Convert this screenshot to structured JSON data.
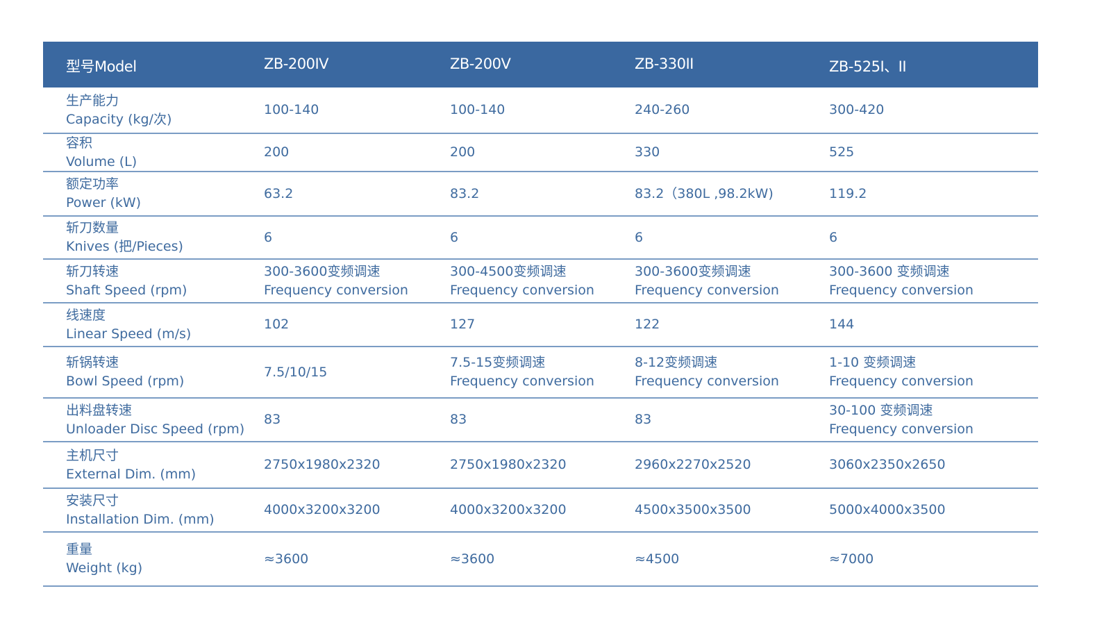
{
  "header": [
    "型号Model",
    "ZB-200IV",
    "ZB-200V",
    "ZB-330II",
    "ZB-525I、II"
  ],
  "rows": [
    {
      "label_cn": "生产能力",
      "label_en": "Capacity (kg/次)",
      "values": [
        [
          "100-140"
        ],
        [
          "100-140"
        ],
        [
          "240-260"
        ],
        [
          "300-420"
        ]
      ]
    },
    {
      "label_cn": "容积",
      "label_en": "Volume (L)",
      "values": [
        [
          "200"
        ],
        [
          "200"
        ],
        [
          "330"
        ],
        [
          "525"
        ]
      ]
    },
    {
      "label_cn": "额定功率",
      "label_en": "Power (kW)",
      "values": [
        [
          "63.2"
        ],
        [
          "83.2"
        ],
        [
          "83.2（380L ,98.2kW)"
        ],
        [
          "119.2"
        ]
      ]
    },
    {
      "label_cn": "斩刀数量",
      "label_en": "Knives (把/Pieces)",
      "values": [
        [
          "6"
        ],
        [
          "6"
        ],
        [
          "6"
        ],
        [
          "6"
        ]
      ]
    },
    {
      "label_cn": "斩刀转速",
      "label_en": "Shaft Speed (rpm)",
      "values": [
        [
          "300-3600变频调速",
          "Frequency conversion"
        ],
        [
          "300-4500变频调速",
          "Frequency conversion"
        ],
        [
          "300-3600变频调速",
          "Frequency conversion"
        ],
        [
          "300-3600 变频调速",
          "Frequency conversion"
        ]
      ]
    },
    {
      "label_cn": "线速度",
      "label_en": "Linear Speed (m/s)",
      "values": [
        [
          "102"
        ],
        [
          "127"
        ],
        [
          "122"
        ],
        [
          "144"
        ]
      ]
    },
    {
      "label_cn": "斩锅转速",
      "label_en": "Bowl Speed (rpm)",
      "values": [
        [
          "7.5/10/15"
        ],
        [
          "7.5-15变频调速",
          "Frequency conversion"
        ],
        [
          "8-12变频调速",
          "Frequency conversion"
        ],
        [
          "1-10 变频调速",
          "Frequency conversion"
        ]
      ]
    },
    {
      "label_cn": "出料盘转速",
      "label_en": "Unloader Disc Speed (rpm)",
      "values": [
        [
          "83"
        ],
        [
          "83"
        ],
        [
          "83"
        ],
        [
          "30-100 变频调速",
          "Frequency conversion"
        ]
      ]
    },
    {
      "label_cn": "主机尺寸",
      "label_en": "External Dim. (mm)",
      "values": [
        [
          "2750x1980x2320"
        ],
        [
          "2750x1980x2320"
        ],
        [
          "2960x2270x2520"
        ],
        [
          "3060x2350x2650"
        ]
      ]
    },
    {
      "label_cn": "安装尺寸",
      "label_en": "Installation Dim. (mm)",
      "values": [
        [
          "4000x3200x3200"
        ],
        [
          "4000x3200x3200"
        ],
        [
          "4500x3500x3500"
        ],
        [
          "5000x4000x3500"
        ]
      ]
    },
    {
      "label_cn": "重量",
      "label_en": "Weight (kg)",
      "values": [
        [
          "≈3600"
        ],
        [
          "≈3600"
        ],
        [
          "≈4500"
        ],
        [
          "≈7000"
        ]
      ]
    }
  ],
  "colors": {
    "header_bg": "#3a68a0",
    "text": "#3f6b9f",
    "rule": "#7a9cc4"
  }
}
